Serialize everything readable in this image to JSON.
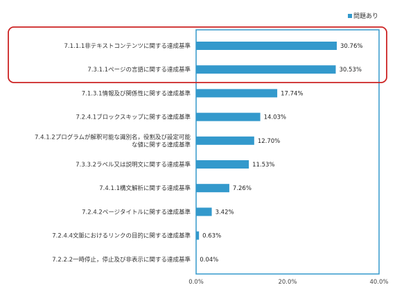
{
  "chart_data": {
    "type": "bar",
    "orientation": "horizontal",
    "categories": [
      "7.1.1.1非テキストコンテンツに関する達成基準",
      "7.3.1.1ページの言語に関する達成基準",
      "7.1.3.1情報及び関係性に関する達成基準",
      "7.2.4.1ブロックスキップに関する達成基準",
      "7.4.1.2プログラムが解釈可能な識別名，役割及び設定可能な値に関する達成基準",
      "7.3.3.2ラベル又は説明文に関する達成基準",
      "7.4.1.1構文解析に関する達成基準",
      "7.2.4.2ページタイトルに関する達成基準",
      "7.2.4.4文脈におけるリンクの目的に関する達成基準",
      "7.2.2.2一時停止，停止及び非表示に関する達成基準"
    ],
    "series": [
      {
        "name": "問題あり",
        "values": [
          30.76,
          30.53,
          17.74,
          14.03,
          12.7,
          11.53,
          7.26,
          3.42,
          0.63,
          0.04
        ],
        "labels": [
          "30.76%",
          "30.53%",
          "17.74%",
          "14.03%",
          "12.70%",
          "11.53%",
          "7.26%",
          "3.42%",
          "0.63%",
          "0.04%"
        ],
        "color": "#3399cc"
      }
    ],
    "xlim": [
      0,
      40
    ],
    "xticks": [
      "0.0%",
      "20.0%",
      "40.0%"
    ],
    "legend_position": "top-right",
    "highlight_color": "#cc2222",
    "highlight_categories": [
      0,
      1
    ],
    "frame_color": "#3399cc"
  }
}
